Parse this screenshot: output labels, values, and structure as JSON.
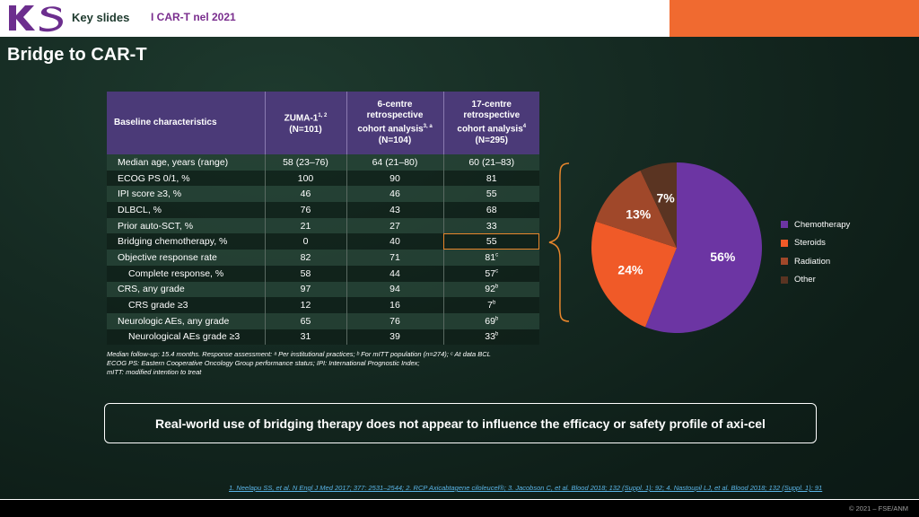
{
  "header": {
    "logo_text": "KS",
    "key_slides": "Key slides",
    "topic": "I CAR-T nel 2021"
  },
  "slide_title": "Bridge to CAR-T",
  "table": {
    "headers": {
      "c0": "Baseline characteristics",
      "c1a": "ZUMA-1",
      "c1sup": "1, 2",
      "c1b": "(N=101)",
      "c2a": "6-centre",
      "c2b": "retrospective",
      "c2c": "cohort analysis",
      "c2sup": "3, a",
      "c2d": "(N=104)",
      "c3a": "17-centre",
      "c3b": "retrospective",
      "c3c": "cohort analysis",
      "c3sup": "4",
      "c3d": "(N=295)"
    },
    "rows": [
      {
        "label": "Median age, years (range)",
        "c1": "58 (23–76)",
        "c2": "64 (21–80)",
        "c3": "60 (21–83)",
        "c3sup": ""
      },
      {
        "label": "ECOG PS 0/1, %",
        "c1": "100",
        "c2": "90",
        "c3": "81",
        "c3sup": ""
      },
      {
        "label": "IPI score ≥3, %",
        "c1": "46",
        "c2": "46",
        "c3": "55",
        "c3sup": ""
      },
      {
        "label": "DLBCL, %",
        "c1": "76",
        "c2": "43",
        "c3": "68",
        "c3sup": ""
      },
      {
        "label": "Prior auto-SCT, %",
        "c1": "21",
        "c2": "27",
        "c3": "33",
        "c3sup": ""
      },
      {
        "label": "Bridging chemotherapy, %",
        "c1": "0",
        "c2": "40",
        "c3": "55",
        "c3sup": ""
      },
      {
        "label": "Objective response rate",
        "c1": "82",
        "c2": "71",
        "c3": "81",
        "c3sup": "c"
      },
      {
        "label": "Complete response, %",
        "c1": "58",
        "c2": "44",
        "c3": "57",
        "c3sup": "c"
      },
      {
        "label": "CRS, any grade",
        "c1": "97",
        "c2": "94",
        "c3": "92",
        "c3sup": "b"
      },
      {
        "label": "CRS grade ≥3",
        "c1": "12",
        "c2": "16",
        "c3": "7",
        "c3sup": "b"
      },
      {
        "label": "Neurologic AEs, any grade",
        "c1": "65",
        "c2": "76",
        "c3": "69",
        "c3sup": "b"
      },
      {
        "label": "Neurological AEs grade ≥3",
        "c1": "31",
        "c2": "39",
        "c3": "33",
        "c3sup": "b"
      }
    ]
  },
  "footnote": {
    "line1": "Median follow-up: 15.4 months. Response assessment: ᵃ Per institutional practices; ᵇ For mITT population (n=274); ᶜ At data BCL",
    "line2": "ECOG PS: Eastern Cooperative Oncology Group performance status; IPI: International Prognostic Index;",
    "line3": "mITT: modified intention to treat"
  },
  "chart_data": {
    "type": "pie",
    "categories": [
      "Chemotherapy",
      "Steroids",
      "Radiation",
      "Other"
    ],
    "values": [
      56,
      24,
      13,
      7
    ],
    "labels": [
      "56%",
      "24%",
      "13%",
      "7%"
    ],
    "colors": [
      "#6c35a3",
      "#f05a28",
      "#a0482a",
      "#5a3422"
    ],
    "legend_position": "right"
  },
  "banner": "Real-world use of bridging therapy does not appear to influence the efficacy or safety profile of axi-cel",
  "references": "1. Neelapu SS, et al. N Engl J Med 2017; 377: 2531–2544; 2. RCP Axicabtagene ciloleucel®; 3. Jacobson C, et al. Blood 2018; 132 (Suppl. 1): 92; 4. Nastoupil LJ, et al. Blood 2018; 132 (Suppl. 1): 91",
  "copyright": "© 2021 – FSE/ANM"
}
